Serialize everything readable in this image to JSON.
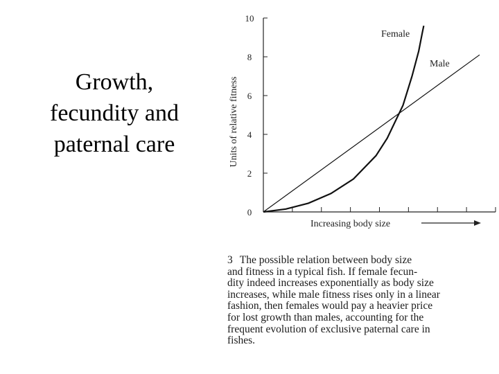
{
  "slide": {
    "title_lines": [
      "Growth,",
      "fecundity and",
      "paternal care"
    ]
  },
  "figure": {
    "number": "3",
    "caption_lines": [
      "The possible relation between body size",
      "and fitness in a typical fish. If female fecun-",
      "dity indeed increases exponentially as body size",
      "increases, while male fitness rises only in a linear",
      "fashion, then females would pay a heavier price",
      "for lost growth than males, accounting for the",
      "frequent evolution of exclusive paternal care in",
      "fishes."
    ]
  },
  "chart_data": {
    "type": "line",
    "title": "",
    "xlabel": "Increasing body size",
    "ylabel": "Units of relative fitness",
    "ylim": [
      0,
      10
    ],
    "yticks": [
      0,
      2,
      4,
      6,
      8,
      10
    ],
    "xlim": [
      0,
      10
    ],
    "x_tick_count": 8,
    "x_tick_labels": false,
    "grid": false,
    "legend": "inline labels",
    "series": [
      {
        "name": "Female",
        "color": "#111111",
        "x": [
          0,
          1,
          2,
          3,
          4,
          5,
          5.5,
          6.2,
          6.6,
          6.9,
          7.05,
          7.12
        ],
        "y": [
          0,
          0.15,
          0.45,
          0.95,
          1.7,
          2.9,
          3.8,
          5.5,
          7.0,
          8.3,
          9.2,
          9.6
        ]
      },
      {
        "name": "Male",
        "color": "#111111",
        "x": [
          0,
          9.6
        ],
        "y": [
          0,
          8.1
        ]
      }
    ]
  }
}
